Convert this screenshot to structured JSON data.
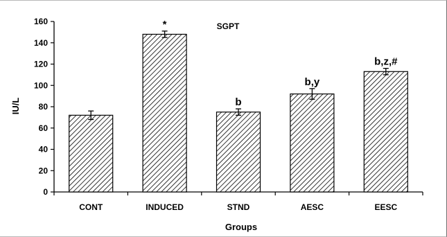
{
  "chart_data": {
    "type": "bar",
    "title": "SGPT",
    "xlabel": "Groups",
    "ylabel": "IU/L",
    "ylim": [
      0,
      160
    ],
    "yticks": [
      0,
      20,
      40,
      60,
      80,
      100,
      120,
      140,
      160
    ],
    "categories": [
      "CONT",
      "INDUCED",
      "STND",
      "AESC",
      "EESC"
    ],
    "values": [
      72,
      148,
      75,
      92,
      113
    ],
    "errors": [
      4,
      3,
      3,
      5,
      3
    ],
    "annotations": [
      "",
      "*",
      "b",
      "b,y",
      "b,z,#"
    ],
    "grid": false,
    "legend": "none",
    "bar_fill": "diagonal-hatch",
    "colors": {
      "bar_stroke": "#000000",
      "hatch": "#000000",
      "background": "#ffffff"
    }
  }
}
